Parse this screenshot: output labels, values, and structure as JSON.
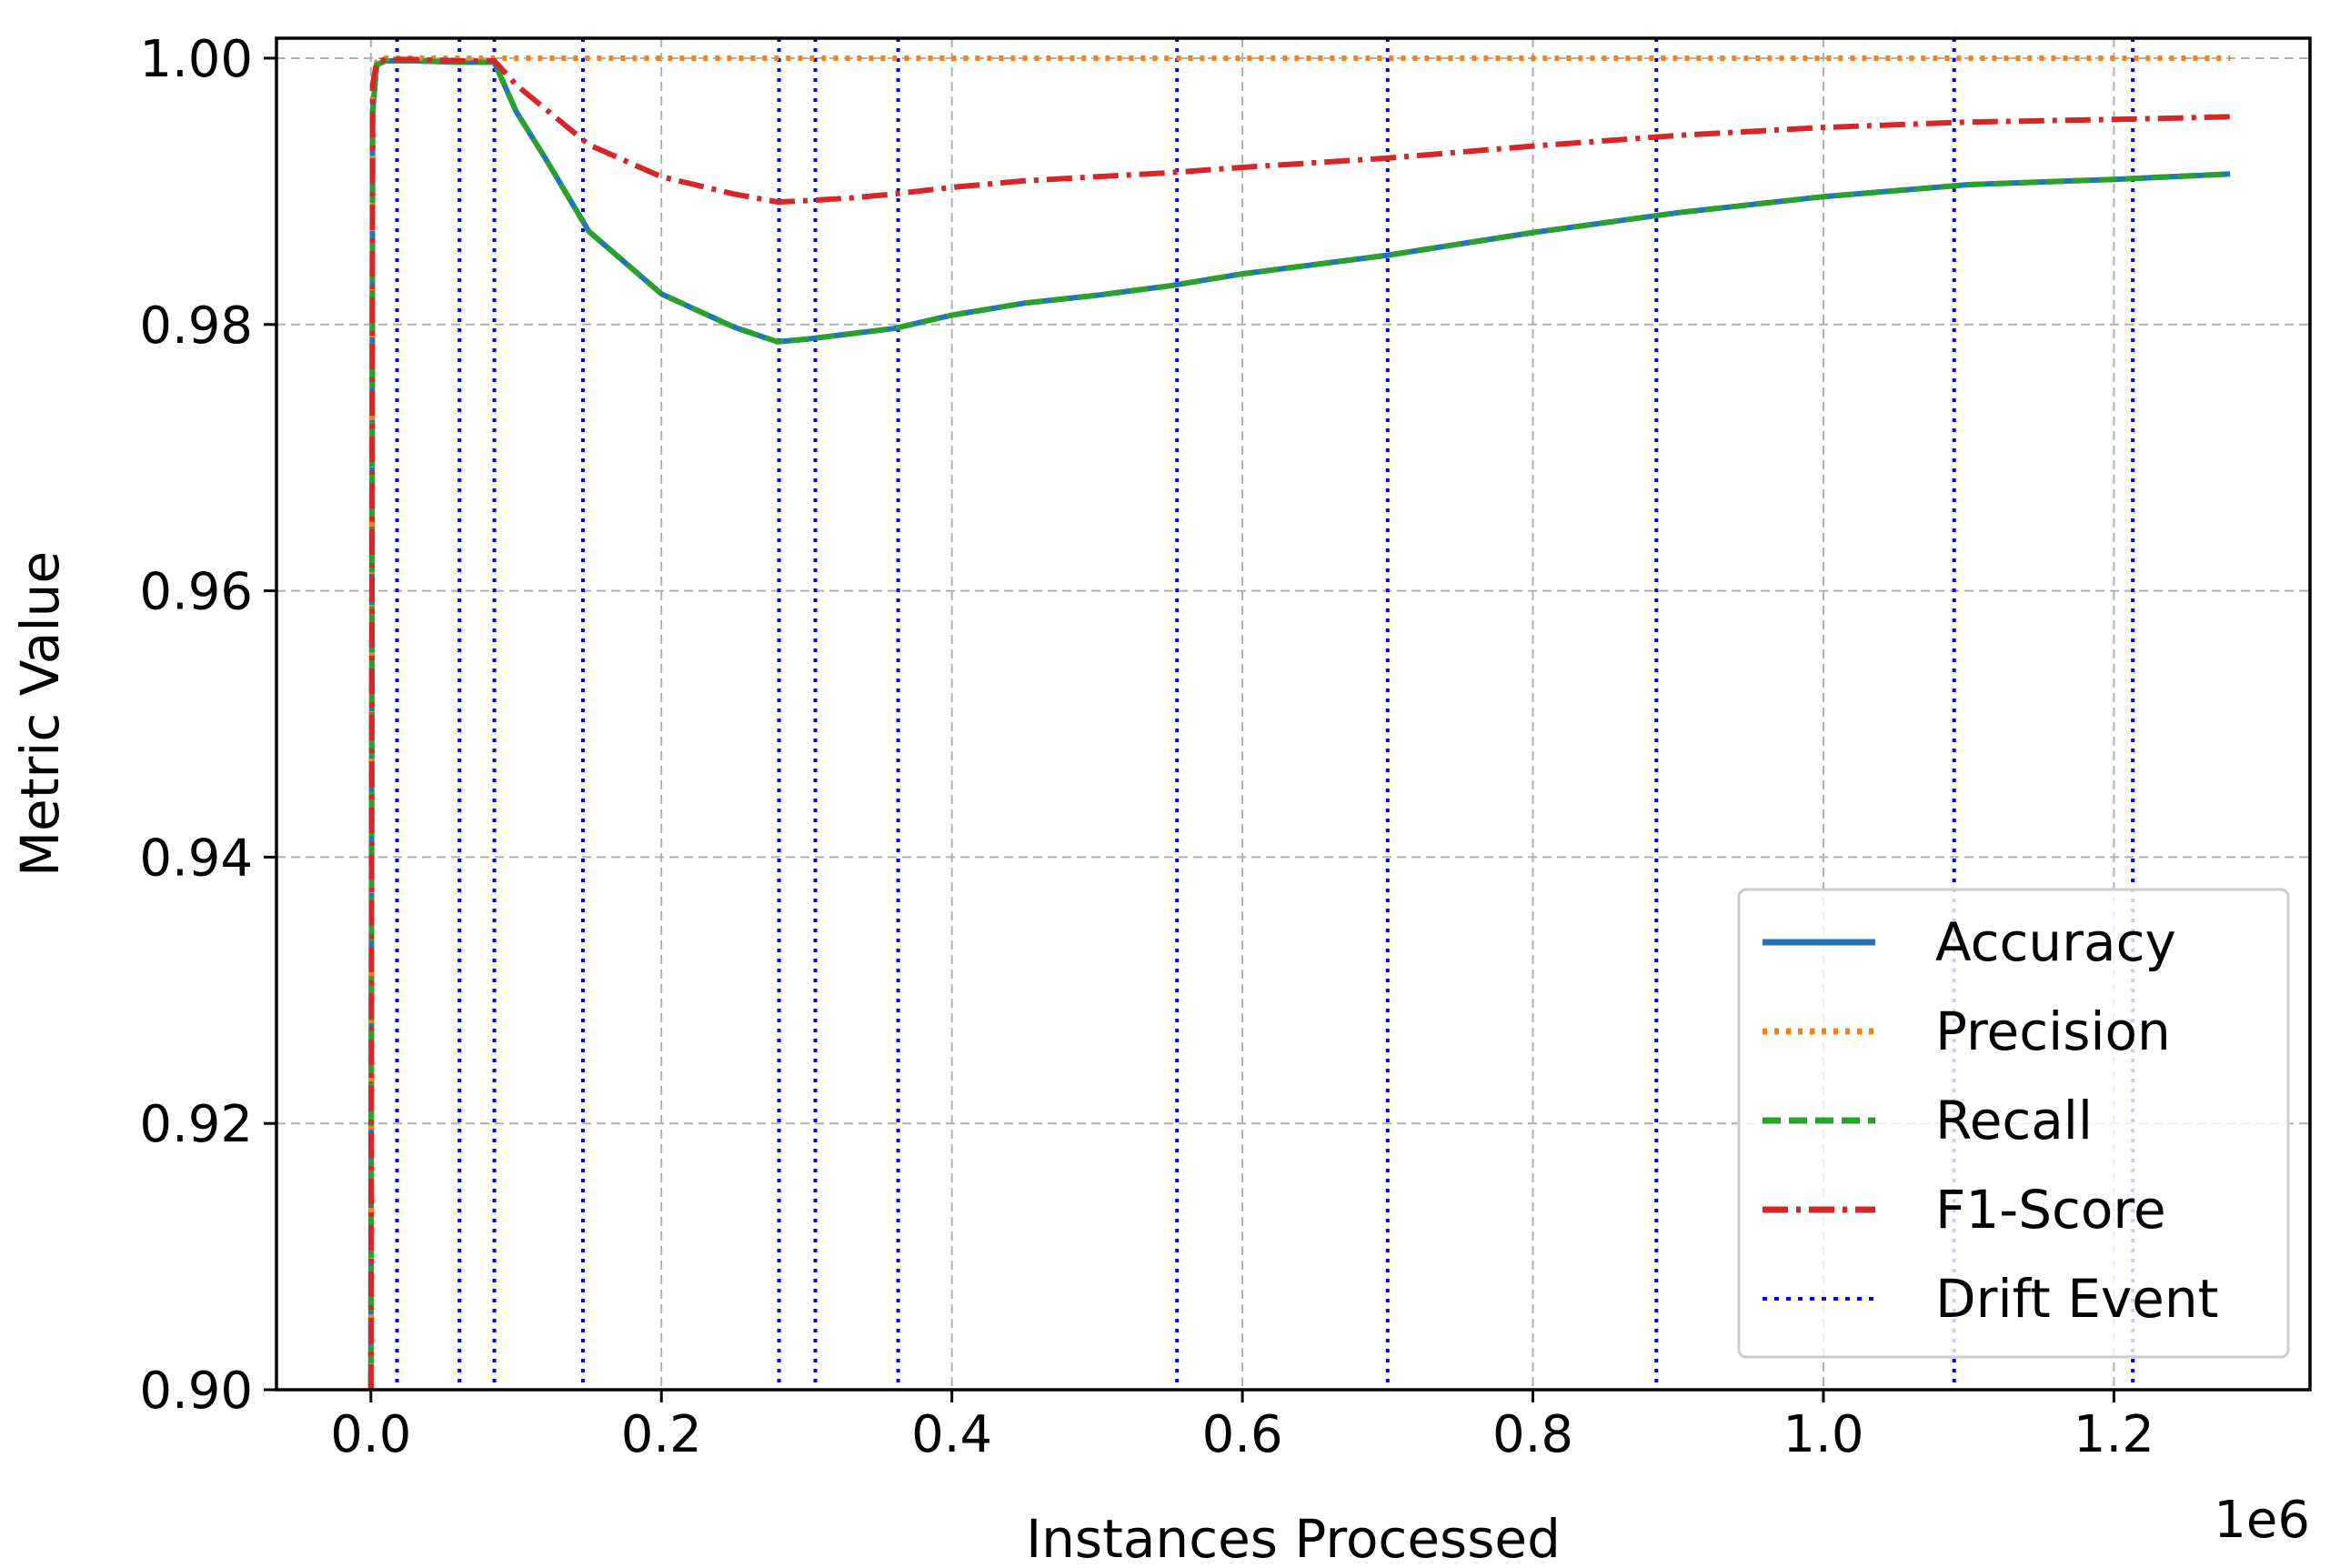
{
  "chart_data": {
    "type": "line",
    "xlabel": "Instances Processed",
    "ylabel": "Metric Value",
    "x_offset_label": "1e6",
    "xlim": [
      -0.065,
      1.335
    ],
    "ylim": [
      0.9,
      1.0015
    ],
    "xticks": [
      0.0,
      0.2,
      0.4,
      0.6,
      0.8,
      1.0,
      1.2
    ],
    "xtick_labels": [
      "0.0",
      "0.2",
      "0.4",
      "0.6",
      "0.8",
      "1.0",
      "1.2"
    ],
    "yticks": [
      0.9,
      0.92,
      0.94,
      0.96,
      0.98,
      1.0
    ],
    "ytick_labels": [
      "0.90",
      "0.92",
      "0.94",
      "0.96",
      "0.98",
      "1.00"
    ],
    "grid": true,
    "legend_position": "lower-right",
    "series": [
      {
        "name": "Accuracy",
        "color": "#1f77b4",
        "style": "solid",
        "x": [
          0.0,
          0.0012,
          0.004,
          0.01,
          0.03,
          0.06,
          0.085,
          0.1,
          0.12,
          0.15,
          0.2,
          0.25,
          0.28,
          0.3,
          0.33,
          0.36,
          0.4,
          0.45,
          0.5,
          0.55,
          0.6,
          0.7,
          0.8,
          0.9,
          1.0,
          1.1,
          1.2,
          1.28
        ],
        "values": [
          0.9,
          0.996,
          0.9995,
          0.9998,
          0.9998,
          0.9997,
          0.9997,
          0.996,
          0.9925,
          0.987,
          0.9823,
          0.9798,
          0.9787,
          0.9789,
          0.9793,
          0.9797,
          0.9807,
          0.9816,
          0.9822,
          0.9829,
          0.9838,
          0.9852,
          0.9869,
          0.9884,
          0.9896,
          0.9905,
          0.9909,
          0.9913
        ]
      },
      {
        "name": "Precision",
        "color": "#ff7f0e",
        "style": "dotted",
        "x": [
          0.0,
          0.0012,
          0.004,
          0.01,
          0.05,
          0.1,
          0.3,
          0.6,
          0.9,
          1.28
        ],
        "values": [
          0.9,
          0.997,
          0.9997,
          1.0,
          1.0,
          1.0,
          1.0,
          1.0,
          1.0,
          1.0
        ]
      },
      {
        "name": "Recall",
        "color": "#2ca02c",
        "style": "dashed",
        "x": [
          0.0,
          0.0012,
          0.004,
          0.01,
          0.03,
          0.06,
          0.085,
          0.1,
          0.12,
          0.15,
          0.2,
          0.25,
          0.28,
          0.3,
          0.33,
          0.36,
          0.4,
          0.45,
          0.5,
          0.55,
          0.6,
          0.7,
          0.8,
          0.9,
          1.0,
          1.1,
          1.2,
          1.28
        ],
        "values": [
          0.9,
          0.996,
          0.9995,
          0.9998,
          0.9998,
          0.9997,
          0.9997,
          0.996,
          0.9925,
          0.987,
          0.9823,
          0.9798,
          0.9787,
          0.9789,
          0.9793,
          0.9797,
          0.9807,
          0.9816,
          0.9822,
          0.9829,
          0.9838,
          0.9852,
          0.9869,
          0.9884,
          0.9896,
          0.9905,
          0.9909,
          0.9913
        ]
      },
      {
        "name": "F1-Score",
        "color": "#d62728",
        "style": "dashdot",
        "x": [
          0.0,
          0.0012,
          0.004,
          0.01,
          0.03,
          0.06,
          0.085,
          0.1,
          0.12,
          0.15,
          0.2,
          0.25,
          0.28,
          0.3,
          0.33,
          0.36,
          0.4,
          0.45,
          0.5,
          0.55,
          0.6,
          0.7,
          0.8,
          0.9,
          1.0,
          1.1,
          1.2,
          1.28
        ],
        "values": [
          0.9,
          0.998,
          0.9997,
          0.9999,
          0.9999,
          0.9998,
          0.9998,
          0.998,
          0.9962,
          0.9935,
          0.9911,
          0.9898,
          0.9892,
          0.9893,
          0.9895,
          0.9898,
          0.9903,
          0.9908,
          0.9911,
          0.9914,
          0.9918,
          0.9925,
          0.9934,
          0.9942,
          0.9948,
          0.9952,
          0.9954,
          0.9956
        ]
      }
    ],
    "drift_events": {
      "name": "Drift Event",
      "color": "#0000ff",
      "style": "dotted",
      "x": [
        0.018,
        0.061,
        0.085,
        0.146,
        0.281,
        0.306,
        0.363,
        0.555,
        0.7,
        0.885,
        1.09,
        1.213
      ]
    }
  }
}
